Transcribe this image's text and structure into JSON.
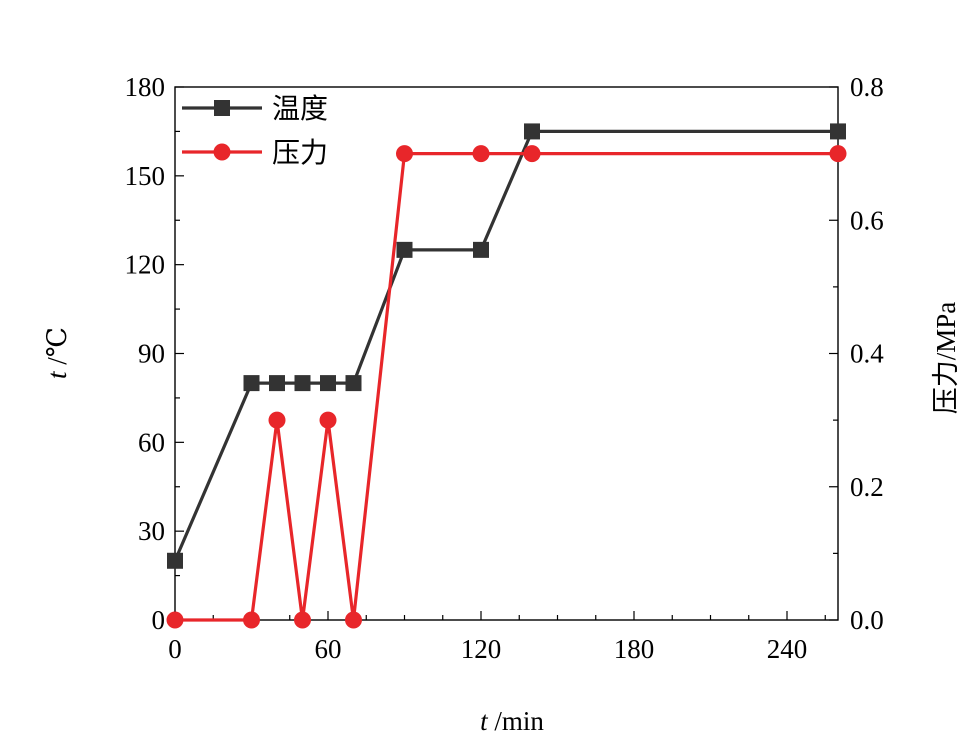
{
  "chart_data": {
    "type": "line",
    "x_axis": {
      "ticks": [
        "0",
        "60",
        "120",
        "180",
        "240"
      ],
      "range": [
        0,
        260
      ],
      "title_var": "t",
      "title_unit": " /min"
    },
    "y_left": {
      "ticks": [
        "0",
        "30",
        "60",
        "90",
        "120",
        "150",
        "180"
      ],
      "range": [
        0,
        180
      ],
      "title_var": "t",
      "title_unit": " /℃"
    },
    "y_right": {
      "ticks": [
        "0.0",
        "0.2",
        "0.4",
        "0.6",
        "0.8"
      ],
      "range": [
        0,
        0.8
      ],
      "title": "压力/MPa"
    },
    "series": [
      {
        "name": "温度",
        "axis": "left",
        "color": "#333333",
        "marker": "square",
        "x": [
          0,
          30,
          40,
          50,
          60,
          70,
          90,
          120,
          140,
          260
        ],
        "y": [
          20,
          80,
          80,
          80,
          80,
          80,
          125,
          125,
          165,
          165
        ]
      },
      {
        "name": "压力",
        "axis": "right",
        "color": "#e8262a",
        "marker": "circle",
        "x": [
          0,
          30,
          40,
          50,
          60,
          70,
          90,
          120,
          140,
          260
        ],
        "y": [
          0.0,
          0.0,
          0.3,
          0.0,
          0.3,
          0.0,
          0.7,
          0.7,
          0.7,
          0.7
        ]
      }
    ],
    "legend_position": "top-left",
    "grid": false
  }
}
